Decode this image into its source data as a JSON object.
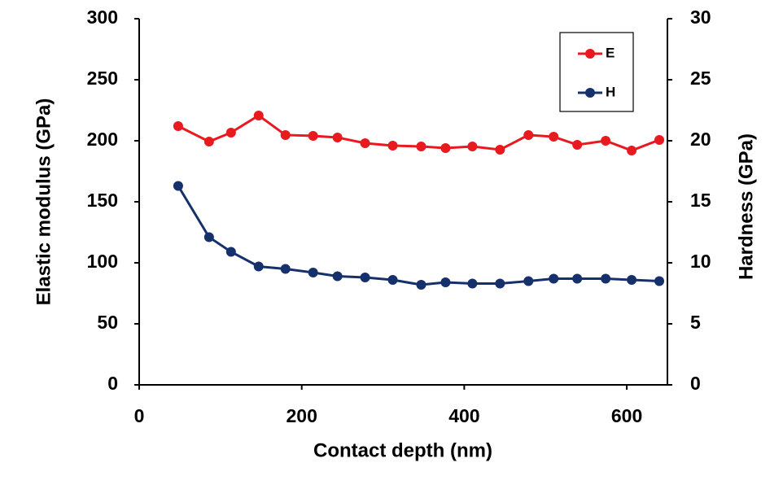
{
  "chart_data": {
    "type": "line",
    "x_label": "Contact depth (nm)",
    "y_label": "Elastic modulus (GPa)",
    "y2_label": "Hardness (GPa)",
    "x": [
      48,
      86,
      113,
      147,
      180,
      214,
      244,
      278,
      312,
      347,
      377,
      410,
      444,
      479,
      510,
      539,
      574,
      606,
      640
    ],
    "series": [
      {
        "name": "E",
        "color": "#e8191f",
        "axis": "y",
        "values": [
          212,
          199.3,
          206.7,
          220.7,
          204.7,
          204,
          202.7,
          198,
          196,
          195.3,
          194,
          195.3,
          192.7,
          204.7,
          203.3,
          196.7,
          200,
          192,
          200.7
        ]
      },
      {
        "name": "H",
        "color": "#15306a",
        "axis": "y2",
        "values": [
          16.3,
          12.1,
          10.9,
          9.7,
          9.5,
          9.2,
          8.9,
          8.8,
          8.6,
          8.2,
          8.4,
          8.3,
          8.3,
          8.5,
          8.7,
          8.7,
          8.7,
          8.6,
          8.5
        ]
      }
    ],
    "xlim": [
      0,
      650
    ],
    "xticks": [
      0,
      200,
      400,
      600
    ],
    "ylim": [
      0,
      300
    ],
    "yticks": [
      0,
      50,
      100,
      150,
      200,
      250,
      300
    ],
    "y2lim": [
      0,
      30
    ],
    "y2ticks": [
      0,
      5,
      10,
      15,
      20,
      25,
      30
    ],
    "legend_position": "upper right"
  }
}
